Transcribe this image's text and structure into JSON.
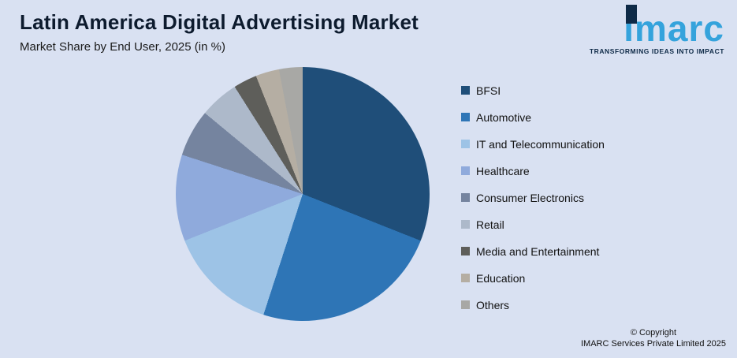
{
  "header": {
    "title": "Latin America Digital Advertising Market",
    "subtitle": "Market Share by End User, 2025 (in %)"
  },
  "logo": {
    "name": "imarc",
    "tagline": "TRANSFORMING IDEAS INTO IMPACT"
  },
  "footer": {
    "copyright_line1": "© Copyright",
    "copyright_line2": "IMARC Services Private Limited 2025"
  },
  "chart_data": {
    "type": "pie",
    "title": "Latin America Digital Advertising Market",
    "subtitle": "Market Share by End User, 2025 (in %)",
    "unit": "%",
    "legend_position": "right",
    "start_angle_deg": 0,
    "direction": "clockwise",
    "slices": [
      {
        "label": "BFSI",
        "value": 31,
        "color": "#1F4E79"
      },
      {
        "label": "Automotive",
        "value": 24,
        "color": "#2E75B6"
      },
      {
        "label": "IT and Telecommunication",
        "value": 14,
        "color": "#9DC3E6"
      },
      {
        "label": "Healthcare",
        "value": 11,
        "color": "#8FAADC"
      },
      {
        "label": "Consumer Electronics",
        "value": 6,
        "color": "#75849F"
      },
      {
        "label": "Retail",
        "value": 5,
        "color": "#ADB9CA"
      },
      {
        "label": "Media and Entertainment",
        "value": 3,
        "color": "#5E5E5A"
      },
      {
        "label": "Education",
        "value": 3,
        "color": "#B5AEA3"
      },
      {
        "label": "Others",
        "value": 3,
        "color": "#A8A8A5"
      }
    ]
  }
}
